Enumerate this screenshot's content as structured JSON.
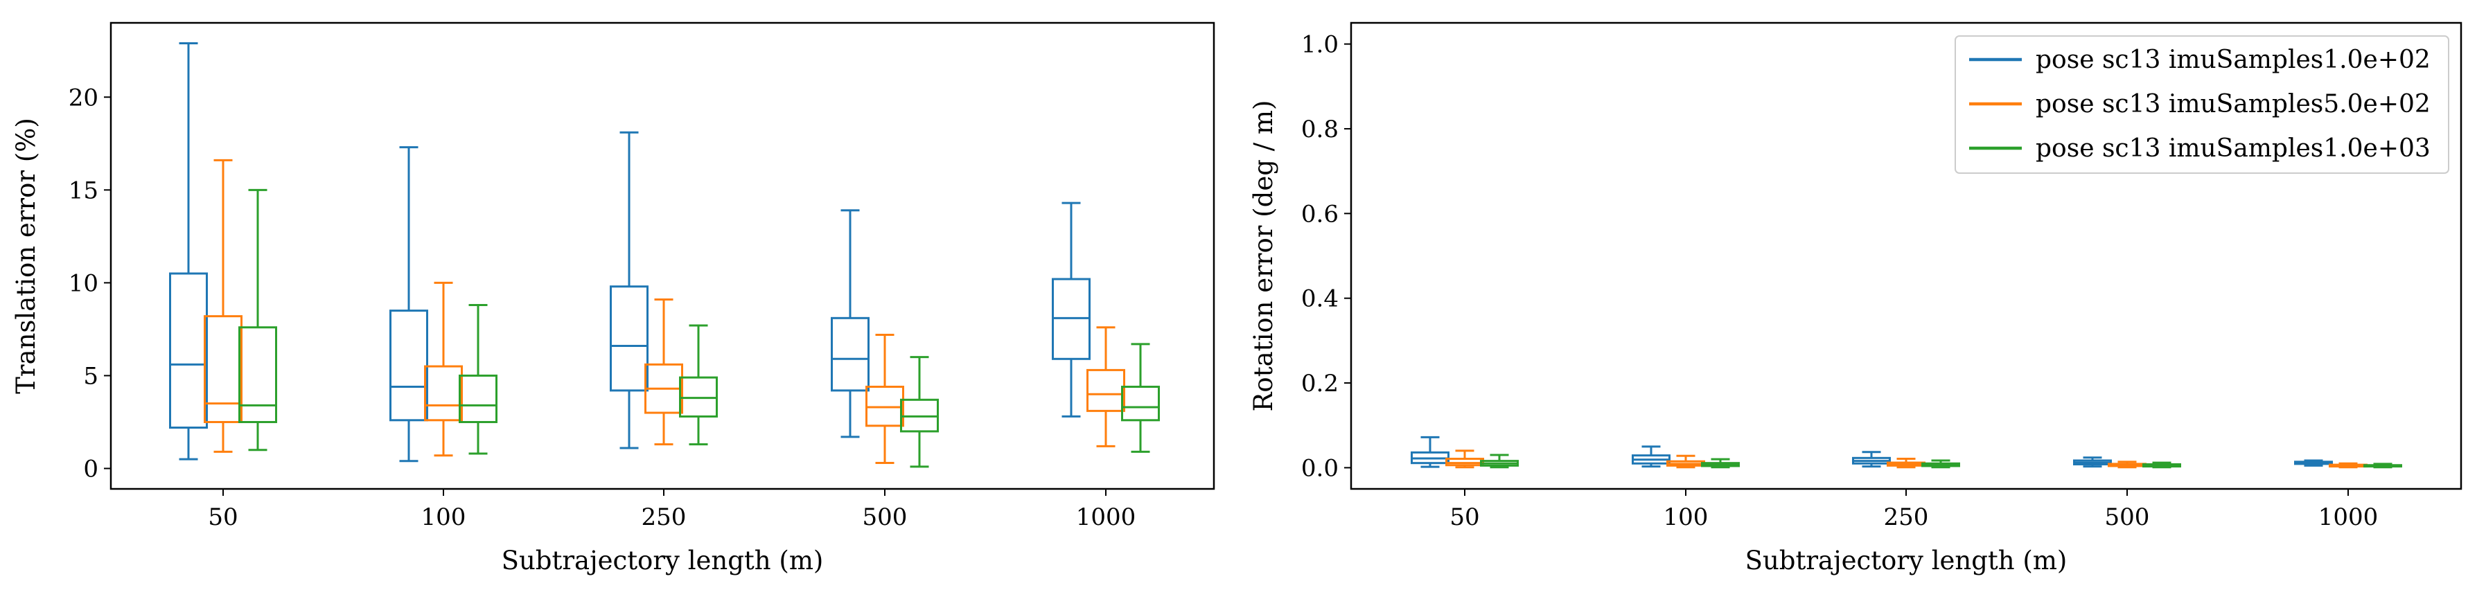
{
  "colors": {
    "series": [
      "#1f77b4",
      "#ff7f0e",
      "#2ca02c"
    ]
  },
  "legend": {
    "placement": "top-right",
    "entries": [
      "pose sc13 imuSamples1.0e+02",
      "pose sc13 imuSamples5.0e+02",
      "pose sc13 imuSamples1.0e+03"
    ]
  },
  "chart_data": [
    {
      "type": "box",
      "xlabel": "Subtrajectory length (m)",
      "ylabel": "Translation error (%)",
      "categories": [
        "50",
        "100",
        "250",
        "500",
        "1000"
      ],
      "ylim": [
        -1.1,
        24.0
      ],
      "yticks": [
        0,
        5,
        10,
        15,
        20
      ],
      "series": [
        {
          "name": "pose sc13 imuSamples1.0e+02",
          "boxes": [
            {
              "whislo": 0.5,
              "q1": 2.2,
              "med": 5.6,
              "q3": 10.5,
              "whishi": 22.9
            },
            {
              "whislo": 0.4,
              "q1": 2.6,
              "med": 4.4,
              "q3": 8.5,
              "whishi": 17.3
            },
            {
              "whislo": 1.1,
              "q1": 4.2,
              "med": 6.6,
              "q3": 9.8,
              "whishi": 18.1
            },
            {
              "whislo": 1.7,
              "q1": 4.2,
              "med": 5.9,
              "q3": 8.1,
              "whishi": 13.9
            },
            {
              "whislo": 2.8,
              "q1": 5.9,
              "med": 8.1,
              "q3": 10.2,
              "whishi": 14.3
            }
          ]
        },
        {
          "name": "pose sc13 imuSamples5.0e+02",
          "boxes": [
            {
              "whislo": 0.9,
              "q1": 2.5,
              "med": 3.5,
              "q3": 8.2,
              "whishi": 16.6
            },
            {
              "whislo": 0.7,
              "q1": 2.6,
              "med": 3.4,
              "q3": 5.5,
              "whishi": 10.0
            },
            {
              "whislo": 1.3,
              "q1": 3.0,
              "med": 4.3,
              "q3": 5.6,
              "whishi": 9.1
            },
            {
              "whislo": 0.3,
              "q1": 2.3,
              "med": 3.3,
              "q3": 4.4,
              "whishi": 7.2
            },
            {
              "whislo": 1.2,
              "q1": 3.1,
              "med": 4.0,
              "q3": 5.3,
              "whishi": 7.6
            }
          ]
        },
        {
          "name": "pose sc13 imuSamples1.0e+03",
          "boxes": [
            {
              "whislo": 1.0,
              "q1": 2.5,
              "med": 3.4,
              "q3": 7.6,
              "whishi": 15.0
            },
            {
              "whislo": 0.8,
              "q1": 2.5,
              "med": 3.4,
              "q3": 5.0,
              "whishi": 8.8
            },
            {
              "whislo": 1.3,
              "q1": 2.8,
              "med": 3.8,
              "q3": 4.9,
              "whishi": 7.7
            },
            {
              "whislo": 0.1,
              "q1": 2.0,
              "med": 2.8,
              "q3": 3.7,
              "whishi": 6.0
            },
            {
              "whislo": 0.9,
              "q1": 2.6,
              "med": 3.3,
              "q3": 4.4,
              "whishi": 6.7
            }
          ]
        }
      ]
    },
    {
      "type": "box",
      "xlabel": "Subtrajectory length (m)",
      "ylabel": "Rotation error (deg / m)",
      "categories": [
        "50",
        "100",
        "250",
        "500",
        "1000"
      ],
      "ylim": [
        -0.05,
        1.05
      ],
      "yticks": [
        "0.0",
        "0.2",
        "0.4",
        "0.6",
        "0.8",
        "1.0"
      ],
      "series": [
        {
          "name": "pose sc13 imuSamples1.0e+02",
          "boxes": [
            {
              "whislo": 0.002,
              "q1": 0.011,
              "med": 0.022,
              "q3": 0.036,
              "whishi": 0.072
            },
            {
              "whislo": 0.003,
              "q1": 0.01,
              "med": 0.019,
              "q3": 0.029,
              "whishi": 0.05
            },
            {
              "whislo": 0.003,
              "q1": 0.01,
              "med": 0.016,
              "q3": 0.023,
              "whishi": 0.037
            },
            {
              "whislo": 0.003,
              "q1": 0.008,
              "med": 0.012,
              "q3": 0.017,
              "whishi": 0.024
            },
            {
              "whislo": 0.005,
              "q1": 0.009,
              "med": 0.012,
              "q3": 0.014,
              "whishi": 0.017
            }
          ]
        },
        {
          "name": "pose sc13 imuSamples5.0e+02",
          "boxes": [
            {
              "whislo": 0.001,
              "q1": 0.006,
              "med": 0.011,
              "q3": 0.021,
              "whishi": 0.04
            },
            {
              "whislo": 0.001,
              "q1": 0.005,
              "med": 0.009,
              "q3": 0.015,
              "whishi": 0.028
            },
            {
              "whislo": 0.001,
              "q1": 0.005,
              "med": 0.008,
              "q3": 0.012,
              "whishi": 0.021
            },
            {
              "whislo": 0.001,
              "q1": 0.004,
              "med": 0.006,
              "q3": 0.009,
              "whishi": 0.014
            },
            {
              "whislo": 0.001,
              "q1": 0.003,
              "med": 0.005,
              "q3": 0.007,
              "whishi": 0.01
            }
          ]
        },
        {
          "name": "pose sc13 imuSamples1.0e+03",
          "boxes": [
            {
              "whislo": 0.001,
              "q1": 0.005,
              "med": 0.01,
              "q3": 0.016,
              "whishi": 0.03
            },
            {
              "whislo": 0.001,
              "q1": 0.004,
              "med": 0.007,
              "q3": 0.011,
              "whishi": 0.02
            },
            {
              "whislo": 0.001,
              "q1": 0.004,
              "med": 0.006,
              "q3": 0.01,
              "whishi": 0.017
            },
            {
              "whislo": 0.001,
              "q1": 0.003,
              "med": 0.005,
              "q3": 0.008,
              "whishi": 0.012
            },
            {
              "whislo": 0.001,
              "q1": 0.003,
              "med": 0.004,
              "q3": 0.006,
              "whishi": 0.009
            }
          ]
        }
      ]
    }
  ]
}
